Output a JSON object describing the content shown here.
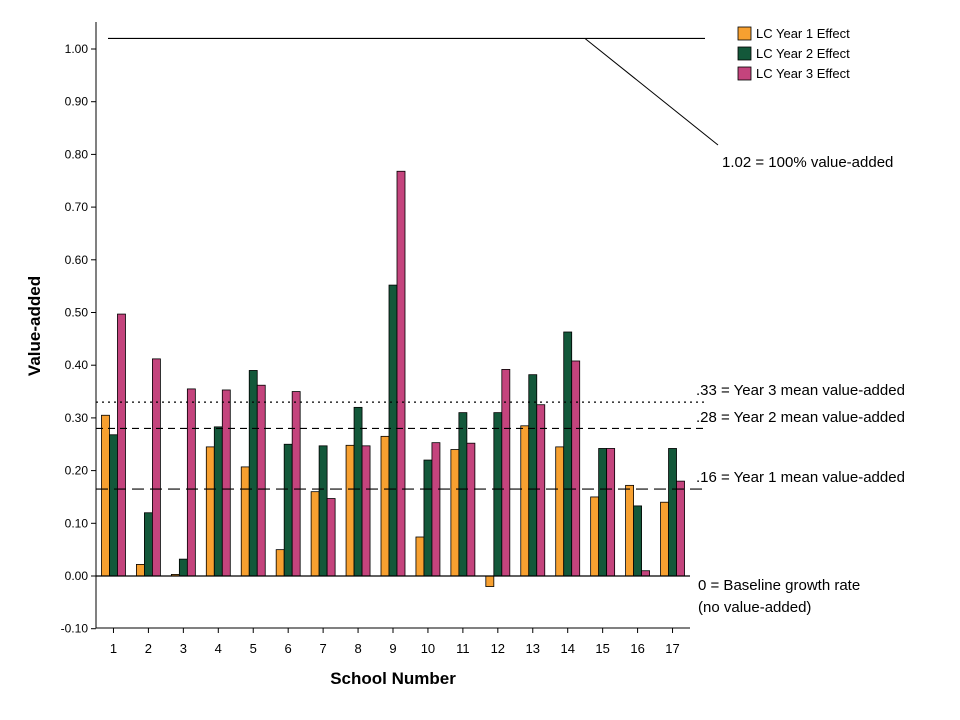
{
  "chart_data": {
    "type": "bar",
    "xlabel": "School Number",
    "ylabel": "Value-added",
    "ylim": [
      -0.1,
      1.05
    ],
    "yticks": [
      "-0.10",
      "0.00",
      "0.10",
      "0.20",
      "0.30",
      "0.40",
      "0.50",
      "0.60",
      "0.70",
      "0.80",
      "0.90",
      "1.00"
    ],
    "ytick_values": [
      -0.1,
      0,
      0.1,
      0.2,
      0.3,
      0.4,
      0.5,
      0.6,
      0.7,
      0.8,
      0.9,
      1.0
    ],
    "categories": [
      "1",
      "2",
      "3",
      "4",
      "5",
      "6",
      "7",
      "8",
      "9",
      "10",
      "11",
      "12",
      "13",
      "14",
      "15",
      "16",
      "17"
    ],
    "series": [
      {
        "name": "LC Year 1 Effect",
        "color": "#F7A030",
        "values": [
          0.305,
          0.022,
          0.003,
          0.245,
          0.207,
          0.05,
          0.16,
          0.248,
          0.265,
          0.074,
          0.24,
          -0.02,
          0.285,
          0.245,
          0.15,
          0.172,
          0.14
        ]
      },
      {
        "name": "LC Year 2 Effect",
        "color": "#13583A",
        "values": [
          0.268,
          0.12,
          0.032,
          0.283,
          0.39,
          0.25,
          0.247,
          0.32,
          0.552,
          0.22,
          0.31,
          0.31,
          0.382,
          0.463,
          0.242,
          0.133,
          0.242
        ]
      },
      {
        "name": "LC Year 3 Effect",
        "color": "#C4447D",
        "values": [
          0.497,
          0.412,
          0.355,
          0.353,
          0.362,
          0.35,
          0.147,
          0.247,
          0.768,
          0.253,
          0.252,
          0.392,
          0.325,
          0.408,
          0.242,
          0.01,
          0.18
        ]
      }
    ],
    "reference_lines": [
      {
        "value": 1.02,
        "style": "solid",
        "label": "1.02 = 100% value-added"
      },
      {
        "value": 0.33,
        "style": "dotted",
        "label": ".33 = Year 3 mean value-added"
      },
      {
        "value": 0.28,
        "style": "dashed",
        "label": ".28 = Year 2 mean value-added"
      },
      {
        "value": 0.165,
        "style": "long-dash",
        "label": ".16 = Year 1 mean value-added"
      },
      {
        "value": 0.0,
        "style": "solid",
        "label": "0 = Baseline growth rate",
        "label2": "(no value-added)"
      }
    ],
    "legend_position": "top-right",
    "grid": false
  }
}
